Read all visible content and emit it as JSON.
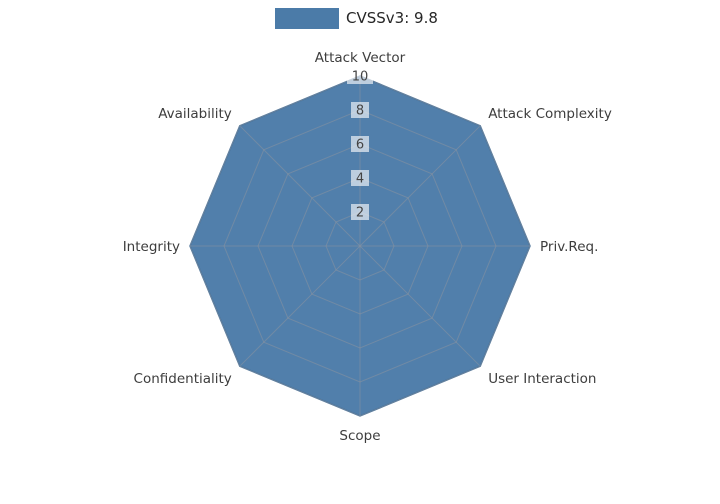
{
  "legend": {
    "label": "CVSSv3: 9.8"
  },
  "chart_data": {
    "type": "radar",
    "title": "",
    "categories": [
      "Attack Vector",
      "Attack Complexity",
      "Priv.Req.",
      "User Interaction",
      "Scope",
      "Confidentiality",
      "Integrity",
      "Availability"
    ],
    "series": [
      {
        "name": "CVSSv3: 9.8",
        "values": [
          10,
          10,
          10,
          10,
          10,
          10,
          10,
          10
        ]
      }
    ],
    "ticks": [
      2,
      4,
      6,
      8,
      10
    ],
    "rlim": [
      0,
      10
    ],
    "grid": true,
    "legend_position": "top-center",
    "colors": {
      "series_fill": "#4B7BA8",
      "series_edge": "#3F6E9A",
      "grid_line": "#8A94A0",
      "category_label": "#3D3D3D",
      "tick_label": "#444444",
      "tick_box": "#FFFFFF"
    }
  }
}
